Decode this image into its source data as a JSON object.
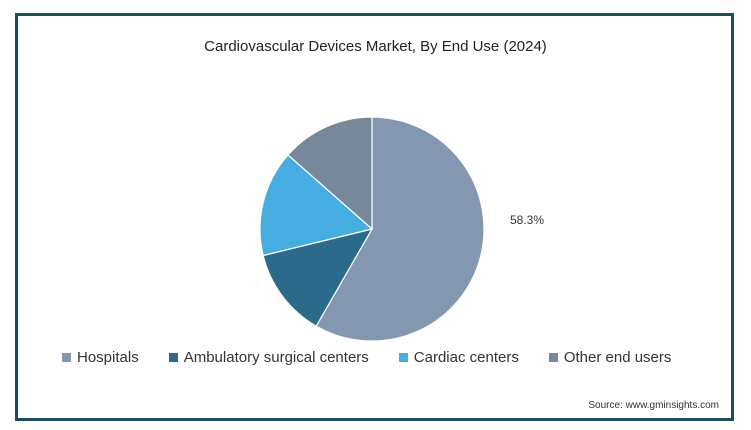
{
  "chart_data": {
    "type": "pie",
    "title": "Cardiovascular Devices Market, By End Use (2024)",
    "slices": [
      {
        "label": "Hospitals",
        "value": 58.3,
        "color": "#8496b0",
        "data_label": "58.3%"
      },
      {
        "label": "Ambulatory surgical centers",
        "value": 12.9,
        "color": "#2c6a8c"
      },
      {
        "label": "Cardiac centers",
        "value": 15.3,
        "color": "#45ade0"
      },
      {
        "label": "Other end users",
        "value": 13.5,
        "color": "#76889a"
      }
    ],
    "legend_position": "bottom"
  },
  "source": "Source: www.gminsights.com"
}
